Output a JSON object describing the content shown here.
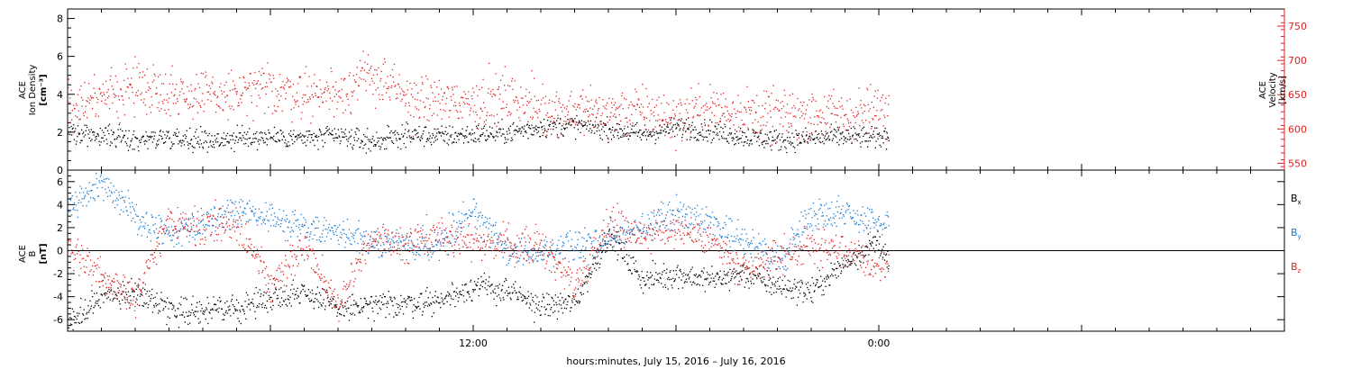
{
  "figure": {
    "xlabel": "hours:minutes, July 15, 2016 – July 16, 2016",
    "x_tick_labels": [
      {
        "hour": 12,
        "label": "12:00"
      },
      {
        "hour": 24,
        "label": "0:00"
      }
    ],
    "x_range_hours": [
      0,
      36
    ]
  },
  "colors": {
    "black": "#000000",
    "red": "#e02020",
    "blue": "#1a7ad4"
  },
  "chart_data": [
    {
      "type": "scatter",
      "panel": "top",
      "ylabel_left": {
        "line1": "ACE",
        "line2": "Ion Density",
        "unit": "[cm⁻³]"
      },
      "ylabel_right": {
        "line1": "ACE",
        "line2": "Velocity",
        "unit": "[km/s]"
      },
      "left_axis": {
        "range": [
          0,
          8.5
        ],
        "ticks": [
          0,
          2,
          4,
          6,
          8
        ]
      },
      "right_axis": {
        "range": [
          540,
          775
        ],
        "ticks": [
          550,
          600,
          650,
          700,
          750
        ]
      },
      "series": [
        {
          "name": "",
          "color": "black",
          "axis": "left",
          "x": [
            0,
            1,
            2,
            3,
            4,
            5,
            6,
            7,
            8,
            9,
            10,
            11,
            12,
            13,
            14,
            15,
            16,
            17,
            18,
            19,
            20,
            21,
            22,
            23,
            24,
            24.3
          ],
          "y": [
            2.1,
            1.9,
            1.6,
            1.8,
            1.6,
            1.7,
            1.8,
            1.7,
            1.8,
            1.5,
            1.9,
            1.8,
            1.9,
            2.0,
            2.3,
            2.4,
            2.2,
            1.9,
            2.3,
            2.1,
            1.8,
            1.6,
            1.7,
            1.8,
            1.7,
            1.9
          ]
        },
        {
          "name": "",
          "color": "red",
          "axis": "right",
          "x": [
            0,
            1,
            2,
            3,
            4,
            5,
            6,
            7,
            8,
            9,
            10,
            11,
            12,
            13,
            14,
            15,
            16,
            17,
            18,
            19,
            20,
            21,
            22,
            23,
            24,
            24.3
          ],
          "y": [
            640,
            645,
            665,
            655,
            648,
            650,
            660,
            652,
            655,
            680,
            645,
            640,
            640,
            648,
            630,
            628,
            625,
            628,
            615,
            632,
            625,
            620,
            625,
            620,
            628,
            630
          ]
        }
      ]
    },
    {
      "type": "scatter",
      "panel": "bottom",
      "ylabel_left": {
        "line1": "ACE",
        "line2": "B",
        "unit": "[nT]"
      },
      "left_axis": {
        "range": [
          -7,
          7
        ],
        "ticks": [
          -6,
          -4,
          -2,
          0,
          2,
          4,
          6
        ]
      },
      "legend": [
        "Bx",
        "By",
        "Bz"
      ],
      "series": [
        {
          "name": "Bx",
          "color": "black",
          "x": [
            0,
            1,
            2,
            3,
            4,
            5,
            6,
            7,
            8,
            9,
            10,
            11,
            12,
            13,
            14,
            15,
            16,
            17,
            18,
            19,
            20,
            21,
            22,
            23,
            24,
            24.3
          ],
          "y": [
            -6.3,
            -4.0,
            -3.5,
            -5.0,
            -5.2,
            -5.0,
            -4.0,
            -3.5,
            -5.0,
            -4.8,
            -4.5,
            -4.3,
            -3.0,
            -3.5,
            -4.8,
            -4.5,
            1.5,
            -2.5,
            -2.0,
            -2.5,
            -2.0,
            -3.0,
            -3.5,
            -1.0,
            1.0,
            -1.5
          ]
        },
        {
          "name": "By",
          "color": "blue",
          "x": [
            0,
            1,
            2,
            3,
            4,
            5,
            6,
            7,
            8,
            9,
            10,
            11,
            12,
            13,
            14,
            15,
            16,
            17,
            18,
            19,
            20,
            21,
            22,
            23,
            24,
            24.3
          ],
          "y": [
            3.8,
            5.8,
            3.0,
            1.5,
            2.5,
            3.5,
            3.0,
            2.0,
            1.5,
            1.0,
            0.5,
            0.8,
            3.5,
            0.0,
            -0.5,
            0.5,
            1.0,
            2.0,
            3.5,
            2.5,
            1.0,
            -1.0,
            3.2,
            3.5,
            2.0,
            3.0
          ]
        },
        {
          "name": "Bz",
          "color": "red",
          "x": [
            0,
            1,
            2,
            3,
            4,
            5,
            6,
            7,
            8,
            9,
            10,
            11,
            12,
            13,
            14,
            15,
            16,
            17,
            18,
            19,
            20,
            21,
            22,
            23,
            24,
            24.3
          ],
          "y": [
            0.5,
            -2.0,
            -4.0,
            3.0,
            2.0,
            2.5,
            -3.0,
            0.5,
            -4.5,
            1.0,
            0.5,
            1.5,
            1.0,
            0.5,
            0.5,
            -3.0,
            2.5,
            1.5,
            2.0,
            1.0,
            -2.0,
            -0.5,
            0.5,
            0.0,
            -1.5,
            -1.0
          ]
        }
      ]
    }
  ]
}
